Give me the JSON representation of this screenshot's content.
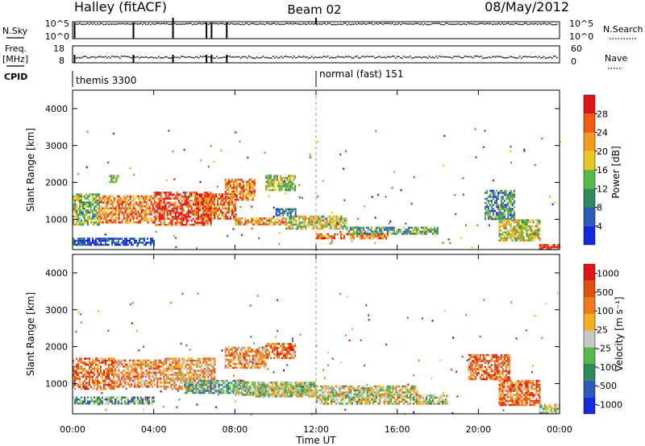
{
  "header": {
    "station": "Halley (fitACF)",
    "beam": "Beam 02",
    "date": "08/May/2012"
  },
  "top_panels": {
    "nsky": {
      "left_label": "N.Sky",
      "left_ticks": [
        "10^5",
        "10^0"
      ],
      "right_label": "N.Search",
      "right_ticks": [
        "10^5",
        "10^0"
      ]
    },
    "freq": {
      "left_label_1": "Freq.",
      "left_label_2": "[MHz]",
      "left_ticks": [
        "18",
        "8"
      ],
      "right_label": "Nave",
      "right_ticks": [
        "60",
        "0"
      ]
    },
    "cpid": {
      "label": "CPID",
      "modes": [
        {
          "start_hour": 0,
          "text": "themis 3300"
        },
        {
          "start_hour": 12,
          "text": "normal (fast) 151"
        }
      ]
    },
    "markers_hours": [
      0.1,
      3.0,
      4.95,
      6.6,
      6.85,
      7.6
    ],
    "spike_hours": [
      4.95,
      12.0
    ]
  },
  "chart_data": [
    {
      "type": "heatmap",
      "name": "power",
      "ylabel": "Slant Range [km]",
      "xlim_hours": [
        0,
        24
      ],
      "ylim_km": [
        180,
        4500
      ],
      "y_ticks": [
        "1000",
        "2000",
        "3000",
        "4000"
      ],
      "x_ticks": [
        "00:00",
        "04:00",
        "08:00",
        "12:00",
        "16:00",
        "20:00",
        "00:00"
      ],
      "colorbar": {
        "label": "Power [dB]",
        "ticks": [
          "4",
          "8",
          "12",
          "16",
          "20",
          "24",
          "28"
        ],
        "colors": [
          "#1428e0",
          "#2f5ab8",
          "#2f8a5a",
          "#58b84a",
          "#e8c820",
          "#f59a20",
          "#f05a14",
          "#e01414"
        ]
      },
      "regions": [
        {
          "h0": 0.0,
          "h1": 1.3,
          "r0": 880,
          "r1": 1700,
          "level": 0.45
        },
        {
          "h0": 1.3,
          "h1": 4.0,
          "r0": 900,
          "r1": 1650,
          "level": 0.75
        },
        {
          "h0": 4.0,
          "h1": 6.8,
          "r0": 850,
          "r1": 1750,
          "level": 0.85
        },
        {
          "h0": 6.0,
          "h1": 8.0,
          "r0": 1000,
          "r1": 1700,
          "level": 0.8
        },
        {
          "h0": 7.5,
          "h1": 9.0,
          "r0": 1500,
          "r1": 2100,
          "level": 0.75
        },
        {
          "h0": 8.0,
          "h1": 10.5,
          "r0": 850,
          "r1": 1050,
          "level": 0.7
        },
        {
          "h0": 9.5,
          "h1": 11.0,
          "r0": 1800,
          "r1": 2200,
          "level": 0.5
        },
        {
          "h0": 10.5,
          "h1": 13.5,
          "r0": 750,
          "r1": 1100,
          "level": 0.55
        },
        {
          "h0": 12.0,
          "h1": 15.5,
          "r0": 480,
          "r1": 620,
          "level": 0.75
        },
        {
          "h0": 13.5,
          "h1": 18.0,
          "r0": 620,
          "r1": 800,
          "level": 0.35
        },
        {
          "h0": 0.0,
          "h1": 4.0,
          "r0": 300,
          "r1": 500,
          "level": 0.12
        },
        {
          "h0": 20.3,
          "h1": 21.8,
          "r0": 1000,
          "r1": 1800,
          "level": 0.3
        },
        {
          "h0": 21.0,
          "h1": 23.0,
          "r0": 400,
          "r1": 1000,
          "level": 0.55
        },
        {
          "h0": 23.0,
          "h1": 24.0,
          "r0": 180,
          "r1": 330,
          "level": 0.95
        },
        {
          "h0": 1.8,
          "h1": 2.2,
          "r0": 2000,
          "r1": 2200,
          "level": 0.5
        },
        {
          "h0": 10.0,
          "h1": 11.0,
          "r0": 1100,
          "r1": 1300,
          "level": 0.2
        }
      ]
    },
    {
      "type": "heatmap",
      "name": "velocity",
      "ylabel": "Slant Range [km]",
      "xlabel": "Time UT",
      "xlim_hours": [
        0,
        24
      ],
      "ylim_km": [
        180,
        4500
      ],
      "y_ticks": [
        "1000",
        "2000",
        "3000",
        "4000"
      ],
      "x_ticks": [
        "00:00",
        "04:00",
        "08:00",
        "12:00",
        "16:00",
        "20:00",
        "00:00"
      ],
      "colorbar": {
        "label": "Velocity [m s⁻¹]",
        "ticks": [
          "1000",
          "500",
          "100",
          "25",
          "-25",
          "-100",
          "-500",
          "-1000"
        ],
        "colors": [
          "#1428e0",
          "#2f5ab8",
          "#2f8a5a",
          "#58b84a",
          "#c8c8c8",
          "#f5b020",
          "#f07a1e",
          "#e05014",
          "#e01414"
        ]
      },
      "regions": [
        {
          "h0": 0.0,
          "h1": 2.0,
          "r0": 880,
          "r1": 1700,
          "level": 0.75
        },
        {
          "h0": 2.0,
          "h1": 4.5,
          "r0": 900,
          "r1": 1650,
          "level": 0.7
        },
        {
          "h0": 4.5,
          "h1": 7.0,
          "r0": 850,
          "r1": 1700,
          "level": 0.65
        },
        {
          "h0": 5.5,
          "h1": 8.5,
          "r0": 750,
          "r1": 1100,
          "level": 0.35
        },
        {
          "h0": 7.5,
          "h1": 9.5,
          "r0": 1400,
          "r1": 2000,
          "level": 0.7
        },
        {
          "h0": 9.5,
          "h1": 11.0,
          "r0": 1700,
          "r1": 2100,
          "level": 0.75
        },
        {
          "h0": 8.0,
          "h1": 12.0,
          "r0": 700,
          "r1": 1050,
          "level": 0.45
        },
        {
          "h0": 9.0,
          "h1": 17.0,
          "r0": 650,
          "r1": 950,
          "level": 0.5
        },
        {
          "h0": 12.0,
          "h1": 18.5,
          "r0": 480,
          "r1": 700,
          "level": 0.5
        },
        {
          "h0": 0.0,
          "h1": 4.0,
          "r0": 450,
          "r1": 650,
          "level": 0.35
        },
        {
          "h0": 19.5,
          "h1": 21.5,
          "r0": 1100,
          "r1": 1800,
          "level": 0.8
        },
        {
          "h0": 21.0,
          "h1": 23.0,
          "r0": 400,
          "r1": 1100,
          "level": 0.78
        },
        {
          "h0": 23.0,
          "h1": 24.0,
          "r0": 200,
          "r1": 450,
          "level": 0.5
        }
      ]
    }
  ]
}
